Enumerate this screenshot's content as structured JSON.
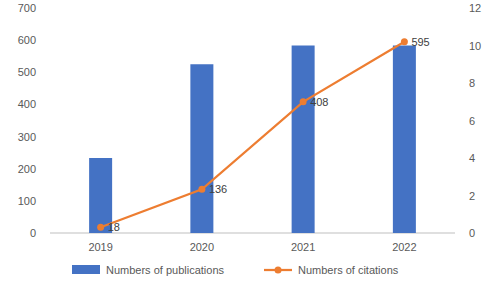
{
  "chart_data": {
    "type": "bar",
    "categories": [
      "2019",
      "2020",
      "2021",
      "2022"
    ],
    "series": [
      {
        "name": "Numbers of publications",
        "type": "bar",
        "color": "#4472c4",
        "axis": "y2",
        "values": [
          4,
          9,
          10,
          10
        ]
      },
      {
        "name": "Numbers of citations",
        "type": "line",
        "color": "#ed7d31",
        "marker": "circle",
        "data_labels": true,
        "values": [
          18,
          136,
          408,
          595
        ]
      }
    ],
    "ylim": [
      0,
      700
    ],
    "yticks": [
      0,
      100,
      200,
      300,
      400,
      500,
      600,
      700
    ],
    "y2lim": [
      0,
      12
    ],
    "y2ticks": [
      0,
      2,
      4,
      6,
      8,
      10,
      12
    ],
    "grid": false,
    "legend": "bottom"
  }
}
